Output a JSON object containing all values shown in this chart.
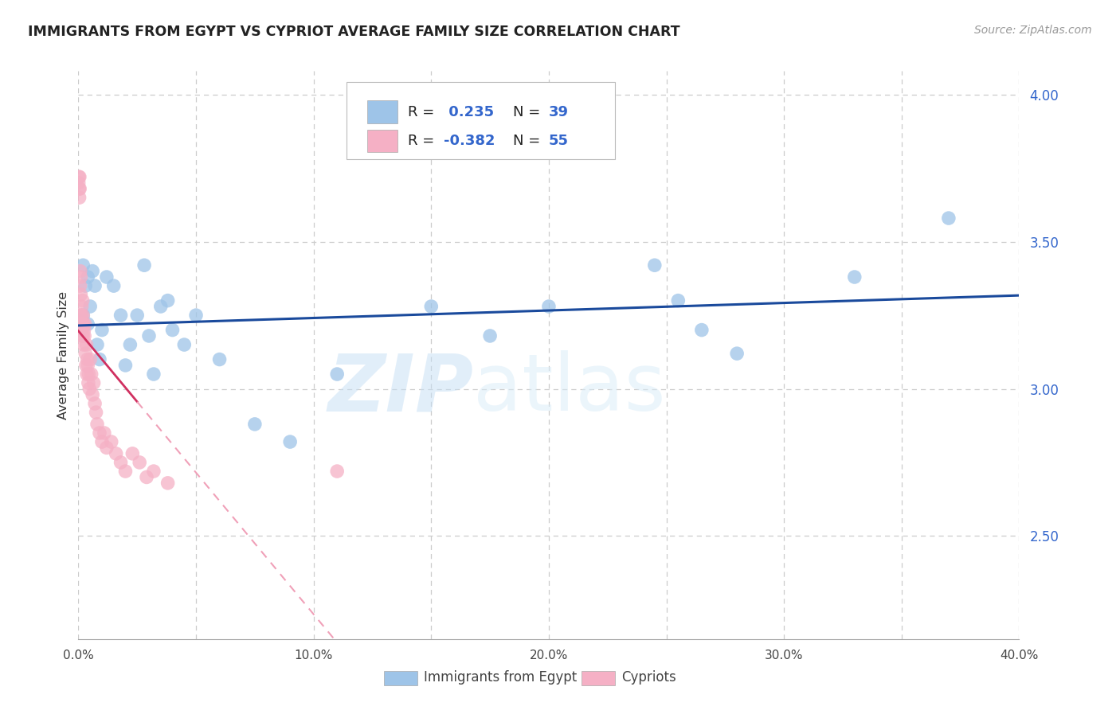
{
  "title": "IMMIGRANTS FROM EGYPT VS CYPRIOT AVERAGE FAMILY SIZE CORRELATION CHART",
  "source": "Source: ZipAtlas.com",
  "ylabel": "Average Family Size",
  "watermark": "ZIPatlas",
  "xmin": 0.0,
  "xmax": 0.4,
  "ymin": 2.15,
  "ymax": 4.08,
  "yticks_right": [
    2.5,
    3.0,
    3.5,
    4.0
  ],
  "xticks": [
    0.0,
    0.05,
    0.1,
    0.15,
    0.2,
    0.25,
    0.3,
    0.35,
    0.4
  ],
  "xtick_labels": [
    "0.0%",
    "",
    "10.0%",
    "",
    "20.0%",
    "",
    "30.0%",
    "",
    "40.0%"
  ],
  "blue_scatter_color": "#9ec4e8",
  "pink_scatter_color": "#f5b0c5",
  "blue_line_color": "#1a4a9c",
  "pink_line_solid_color": "#d03060",
  "pink_line_dashed_color": "#f0a0b8",
  "right_axis_color": "#3366cc",
  "legend_label1": "Immigrants from Egypt",
  "legend_label2": "Cypriots",
  "blue_R": 0.235,
  "blue_N": 39,
  "pink_R": -0.382,
  "pink_N": 55,
  "blue_x": [
    0.001,
    0.002,
    0.002,
    0.003,
    0.004,
    0.004,
    0.005,
    0.006,
    0.007,
    0.008,
    0.009,
    0.01,
    0.012,
    0.015,
    0.018,
    0.02,
    0.022,
    0.025,
    0.028,
    0.03,
    0.032,
    0.035,
    0.038,
    0.04,
    0.045,
    0.05,
    0.06,
    0.075,
    0.09,
    0.11,
    0.15,
    0.175,
    0.2,
    0.245,
    0.255,
    0.265,
    0.28,
    0.33,
    0.37
  ],
  "blue_y": [
    3.2,
    3.42,
    3.25,
    3.35,
    3.38,
    3.22,
    3.28,
    3.4,
    3.35,
    3.15,
    3.1,
    3.2,
    3.38,
    3.35,
    3.25,
    3.08,
    3.15,
    3.25,
    3.42,
    3.18,
    3.05,
    3.28,
    3.3,
    3.2,
    3.15,
    3.25,
    3.1,
    2.88,
    2.82,
    3.05,
    3.28,
    3.18,
    3.28,
    3.42,
    3.3,
    3.2,
    3.12,
    3.38,
    3.58
  ],
  "pink_x": [
    0.0001,
    0.0002,
    0.0003,
    0.0004,
    0.0005,
    0.0006,
    0.0007,
    0.0008,
    0.0009,
    0.001,
    0.001,
    0.0012,
    0.0013,
    0.0014,
    0.0015,
    0.0016,
    0.0017,
    0.0018,
    0.0019,
    0.002,
    0.0021,
    0.0022,
    0.0024,
    0.0026,
    0.0028,
    0.003,
    0.0032,
    0.0034,
    0.0036,
    0.0038,
    0.004,
    0.0042,
    0.0044,
    0.0047,
    0.005,
    0.0055,
    0.006,
    0.0065,
    0.007,
    0.0075,
    0.008,
    0.009,
    0.01,
    0.011,
    0.012,
    0.014,
    0.016,
    0.018,
    0.02,
    0.023,
    0.026,
    0.029,
    0.032,
    0.038,
    0.11
  ],
  "pink_y": [
    3.7,
    3.72,
    3.68,
    3.65,
    3.72,
    3.68,
    3.35,
    3.4,
    3.25,
    3.38,
    3.32,
    3.25,
    3.22,
    3.28,
    3.2,
    3.18,
    3.22,
    3.3,
    3.25,
    3.18,
    3.22,
    3.15,
    3.2,
    3.18,
    3.22,
    3.12,
    3.08,
    3.15,
    3.05,
    3.1,
    3.08,
    3.02,
    3.05,
    3.0,
    3.1,
    3.05,
    2.98,
    3.02,
    2.95,
    2.92,
    2.88,
    2.85,
    2.82,
    2.85,
    2.8,
    2.82,
    2.78,
    2.75,
    2.72,
    2.78,
    2.75,
    2.7,
    2.72,
    2.68,
    2.72
  ],
  "grid_color": "#cccccc",
  "bg_color": "#ffffff"
}
